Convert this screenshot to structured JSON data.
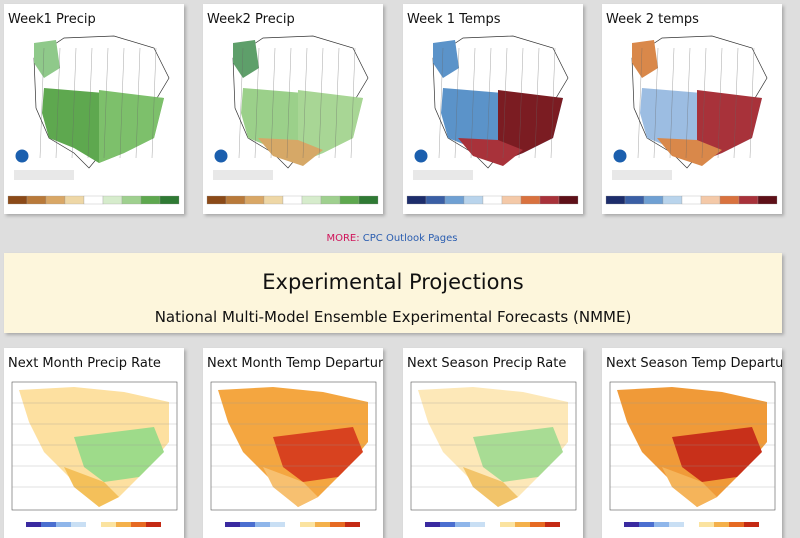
{
  "top_panels": [
    {
      "title": "Week1 Precip"
    },
    {
      "title": "Week2 Precip"
    },
    {
      "title": "Week 1 Temps"
    },
    {
      "title": "Week 2 temps"
    }
  ],
  "top_more": {
    "label": "MORE:",
    "link": "CPC Outlook Pages"
  },
  "banner": {
    "title": "Experimental Projections",
    "subtitle": "National Multi-Model Ensemble Experimental Forecasts (NMME)"
  },
  "bottom_panels": [
    {
      "title": "Next Month Precip Rate"
    },
    {
      "title": "Next Month Temp Departures"
    },
    {
      "title": "Next Season Precip Rate"
    },
    {
      "title": "Next Season Temp Departures"
    }
  ]
}
